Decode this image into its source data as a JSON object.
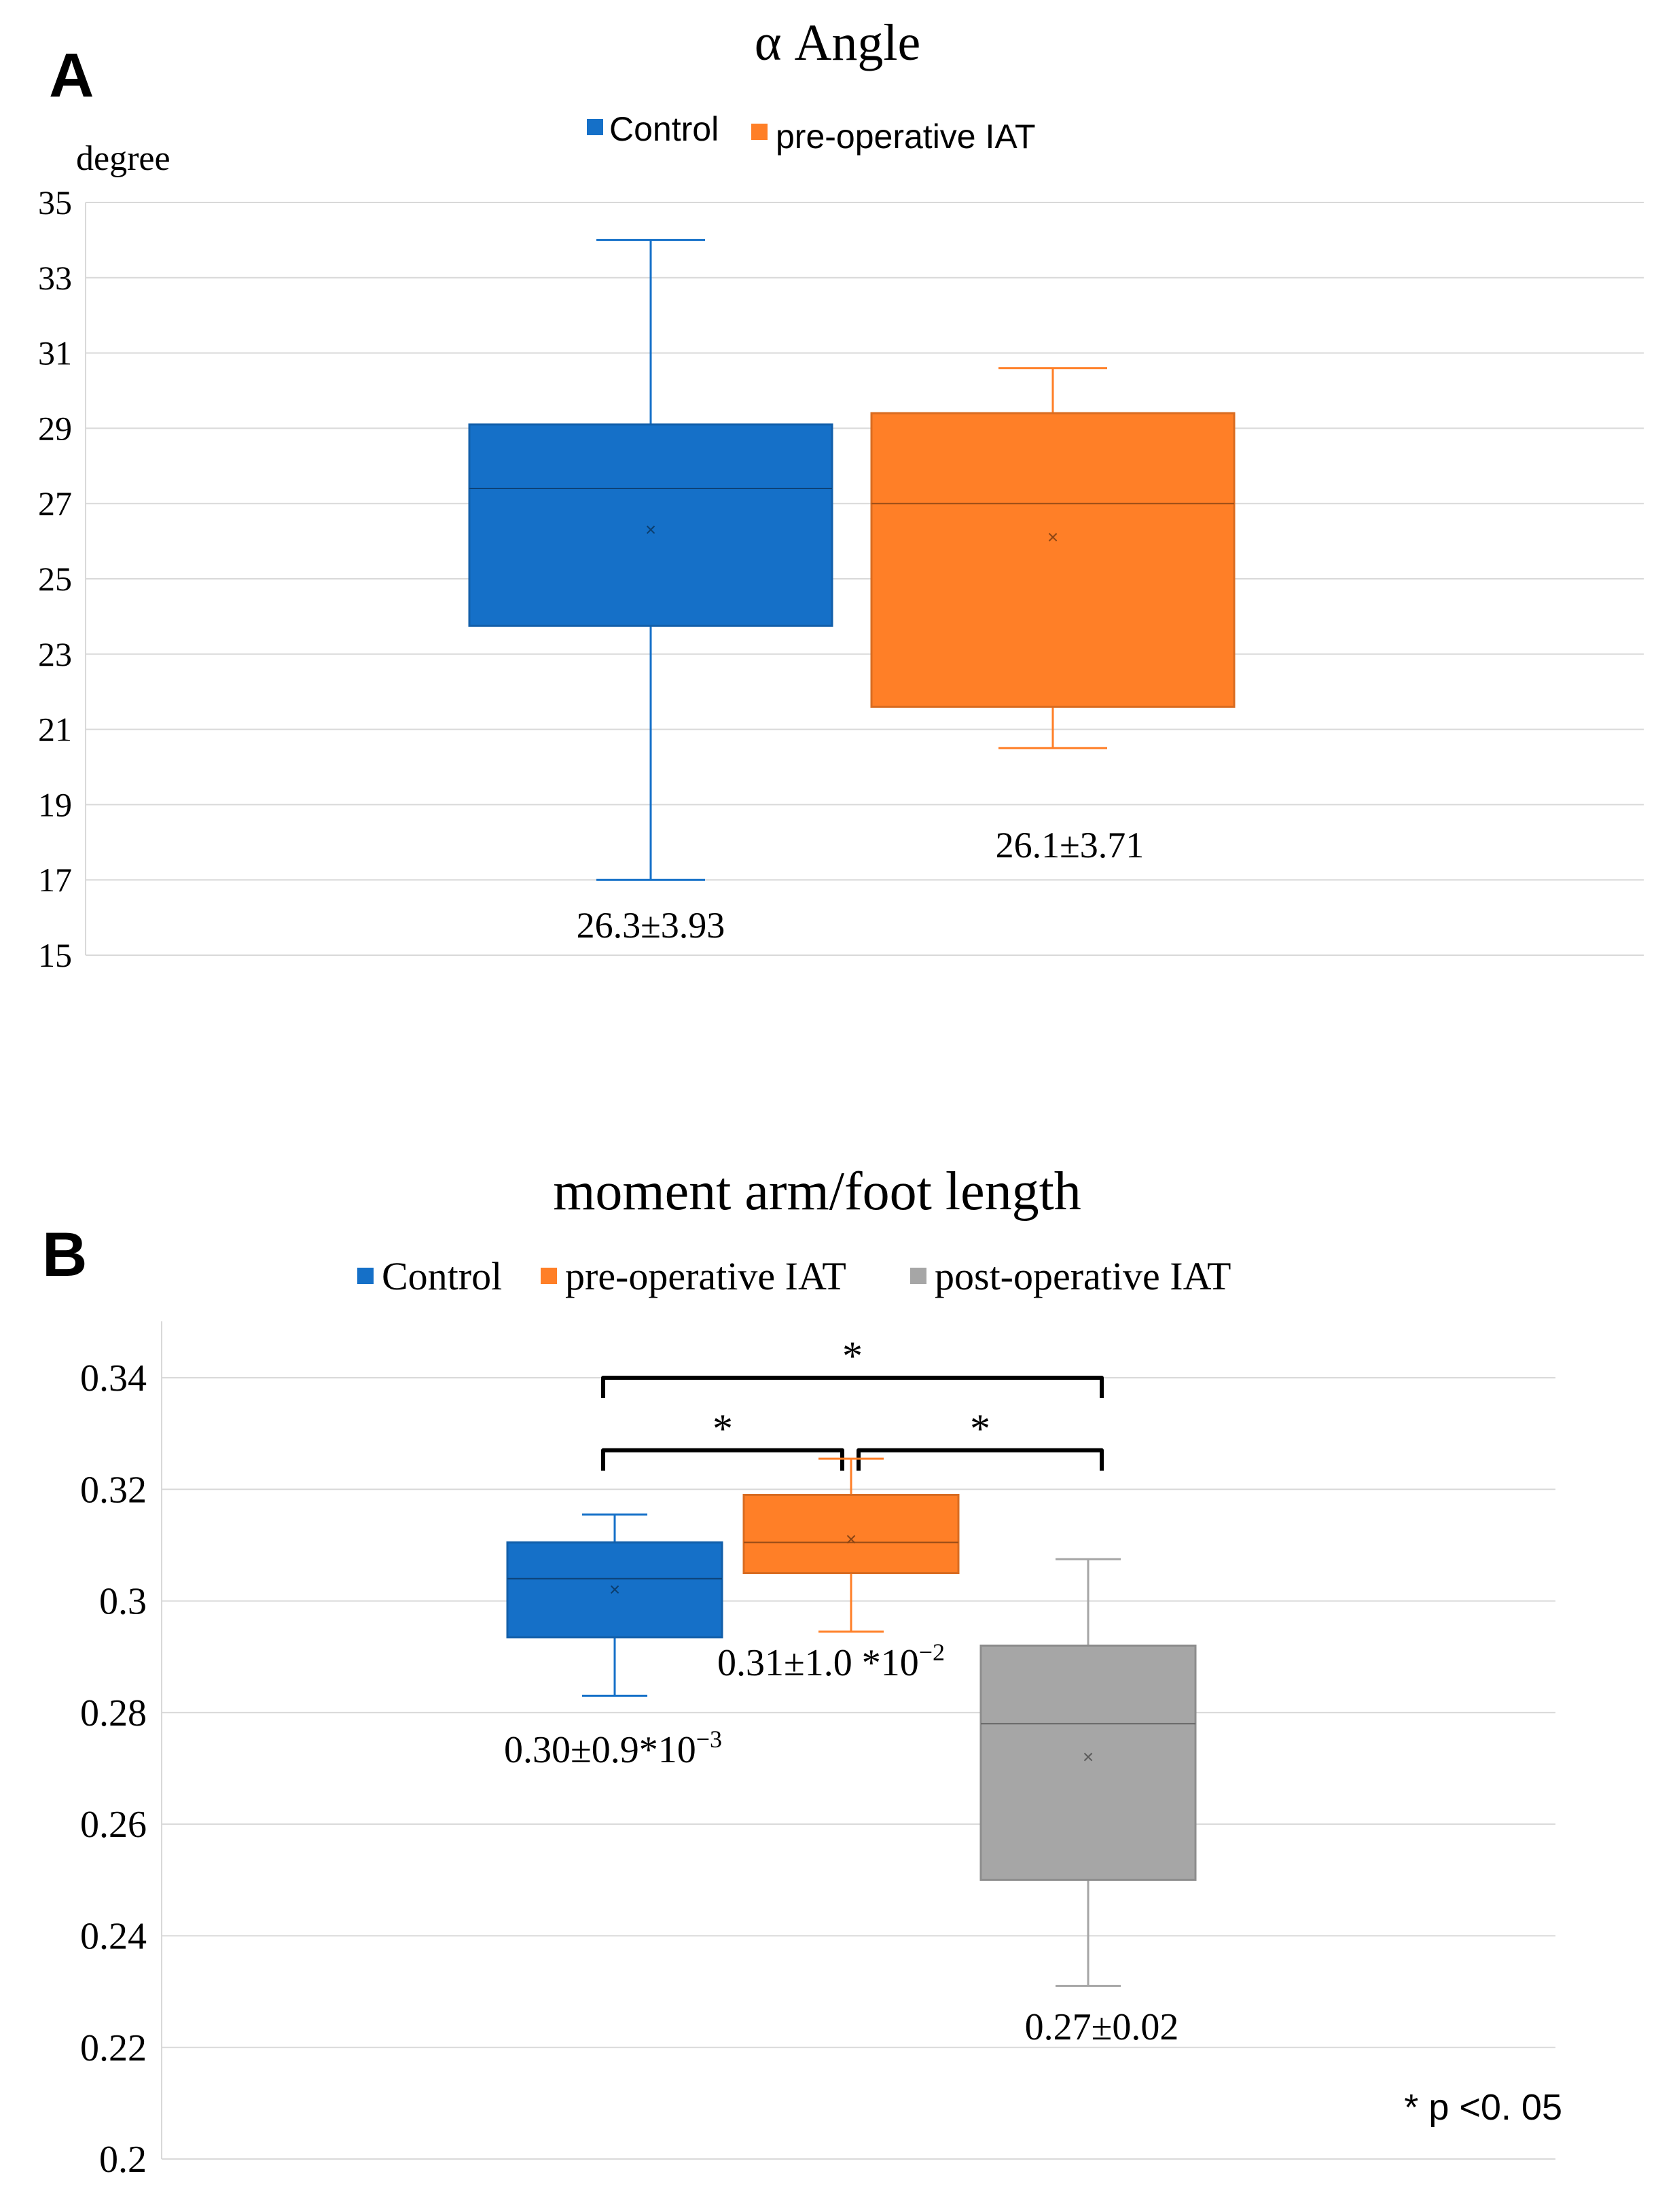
{
  "colors": {
    "control": "#1570C8",
    "pre_operative": "#FF7F27",
    "post_operative": "#A6A6A6",
    "grid": "#D9D9D9",
    "text": "#000000"
  },
  "chart_data": [
    {
      "panel_label": "A",
      "type": "box",
      "title": "α Angle",
      "ylabel": "degree",
      "xlabel": "",
      "ylim": [
        15,
        35
      ],
      "yticks": [
        "35",
        "33",
        "31",
        "29",
        "27",
        "25",
        "23",
        "21",
        "19",
        "17",
        "15"
      ],
      "grid": true,
      "legend": {
        "placement": "top-center",
        "entries": [
          "Control",
          "pre-operative IAT"
        ]
      },
      "series": [
        {
          "name": "Control",
          "color_key": "control",
          "min": 17.0,
          "q1": 23.75,
          "median": 27.4,
          "q3": 29.1,
          "max": 34.0,
          "mean": 26.3,
          "label": "26.3±3.93"
        },
        {
          "name": "pre-operative IAT",
          "color_key": "pre_operative",
          "min": 20.5,
          "q1": 21.6,
          "median": 27.0,
          "q3": 29.4,
          "max": 30.6,
          "mean": 26.1,
          "label": "26.1±3.71"
        }
      ]
    },
    {
      "panel_label": "B",
      "type": "box",
      "title": "moment arm/foot length",
      "ylabel": "",
      "xlabel": "",
      "ylim": [
        0.2,
        0.35
      ],
      "yticks": [
        "0.34",
        "0.32",
        "0.3",
        "0.28",
        "0.26",
        "0.24",
        "0.22",
        "0.2"
      ],
      "grid": true,
      "legend": {
        "placement": "top-center",
        "entries": [
          "Control",
          "pre-operative IAT",
          "post-operative IAT"
        ]
      },
      "series": [
        {
          "name": "Control",
          "color_key": "control",
          "min": 0.283,
          "q1": 0.2935,
          "median": 0.304,
          "q3": 0.3105,
          "max": 0.3155,
          "mean": 0.302,
          "label_main": "0.30±0.9*10",
          "label_sup": "−3"
        },
        {
          "name": "pre-operative IAT",
          "color_key": "pre_operative",
          "min": 0.2945,
          "q1": 0.305,
          "median": 0.3105,
          "q3": 0.319,
          "max": 0.3255,
          "mean": 0.311,
          "label_main": "0.31±1.0 *10",
          "label_sup": "−2"
        },
        {
          "name": "post-operative IAT",
          "color_key": "post_operative",
          "min": 0.231,
          "q1": 0.25,
          "median": 0.278,
          "q3": 0.292,
          "max": 0.3075,
          "mean": 0.272,
          "label_main": "0.27±0.02",
          "label_sup": ""
        }
      ],
      "significance": [
        {
          "from": 0,
          "to": 2,
          "level": 0.34,
          "mark": "*"
        },
        {
          "from": 0,
          "to": 1,
          "level": 0.327,
          "mark": "*"
        },
        {
          "from": 1,
          "to": 2,
          "level": 0.327,
          "mark": "*"
        }
      ],
      "footnote": "* p <0.  05"
    }
  ]
}
